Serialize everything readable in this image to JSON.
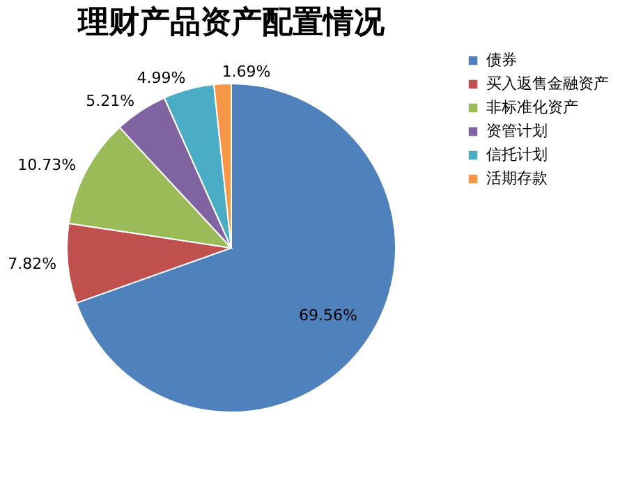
{
  "chart_data": {
    "type": "pie",
    "title": "理财产品资产配置情况",
    "categories": [
      "债券",
      "买入返售金融资产",
      "非标准化资产",
      "资管计划",
      "信托计划",
      "活期存款"
    ],
    "values": [
      69.56,
      7.82,
      10.73,
      5.21,
      4.99,
      1.69
    ],
    "colors": [
      "#4f81bd",
      "#c0504d",
      "#9bbb59",
      "#8064a2",
      "#4bacc6",
      "#f79646"
    ],
    "value_labels": [
      "69.56%",
      "7.82%",
      "10.73%",
      "5.21%",
      "4.99%",
      "1.69%"
    ],
    "legend": "right"
  }
}
